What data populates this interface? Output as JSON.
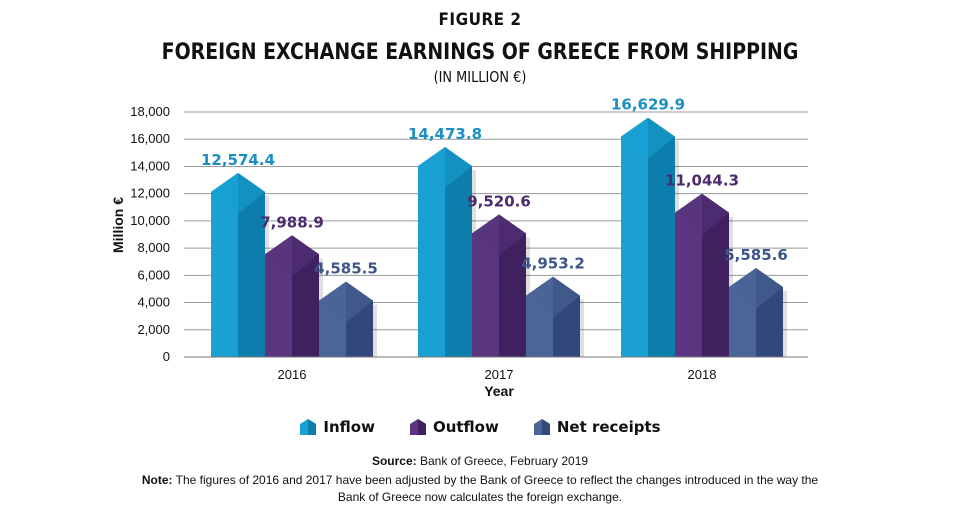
{
  "figure_label": "FIGURE 2",
  "title": "FOREIGN EXCHANGE EARNINGS OF GREECE FROM SHIPPING",
  "subtitle": "(IN MILLION €)",
  "chart_data": {
    "type": "bar",
    "categories": [
      "2016",
      "2017",
      "2018"
    ],
    "series": [
      {
        "name": "Inflow",
        "values": [
          12574.4,
          14473.8,
          16629.9
        ],
        "labels": [
          "12,574.4",
          "14,473.8",
          "16,629.9"
        ],
        "color": "#1aa0d2",
        "dark": "#0d7fab",
        "label_color": "#1b8fc4"
      },
      {
        "name": "Outflow",
        "values": [
          7988.9,
          9520.6,
          11044.3
        ],
        "labels": [
          "7,988.9",
          "9,520.6",
          "11,044.3"
        ],
        "color": "#5a3580",
        "dark": "#3f2160",
        "label_color": "#4b2a6e"
      },
      {
        "name": "Net receipts",
        "values": [
          4585.5,
          4953.2,
          5585.6
        ],
        "labels": [
          "4,585.5",
          "4,953.2",
          "5,585.6"
        ],
        "color": "#4a6597",
        "dark": "#33497a",
        "label_color": "#3d5587"
      }
    ],
    "xlabel": "Year",
    "ylabel": "Million €",
    "ylim": [
      0,
      18000
    ],
    "yticks": [
      "0",
      "2,000",
      "4,000",
      "6,000",
      "8,000",
      "10,000",
      "12,000",
      "14,000",
      "16,000",
      "18,000"
    ],
    "grid": true,
    "legend": "bottom"
  },
  "source_label": "Source:",
  "source_text": "Bank of Greece, February 2019",
  "note_label": "Note:",
  "note_text": "The figures of 2016 and 2017 have been adjusted by the Bank of Greece to reflect the changes introduced in the way the Bank of Greece now calculates the foreign exchange."
}
